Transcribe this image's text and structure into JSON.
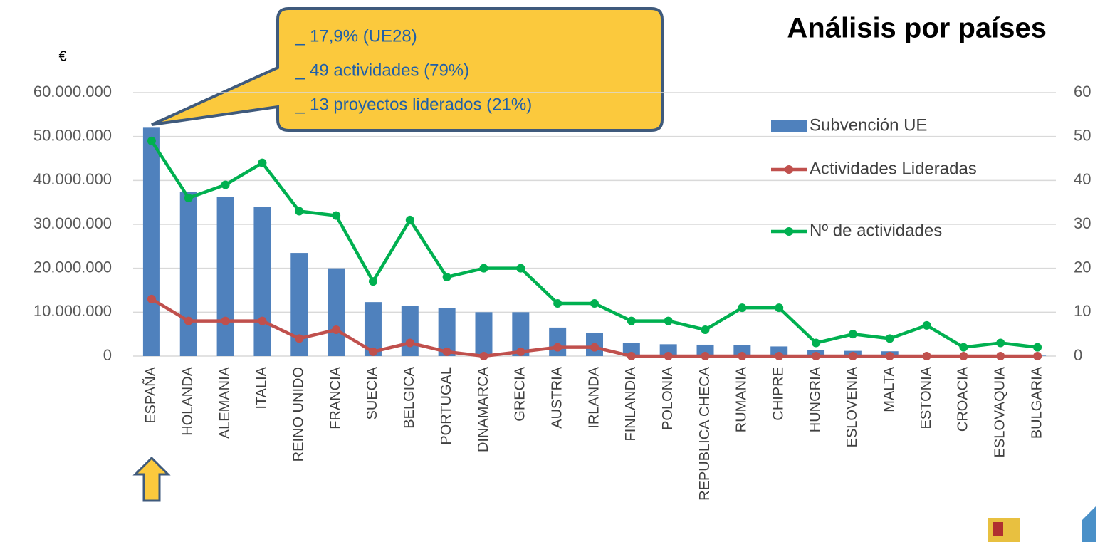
{
  "chart_data": {
    "type": "combo",
    "title": "Análisis por países",
    "y_label": "€",
    "annotations": [
      "_ 17,9% (UE28)",
      "_ 49 actividades (79%)",
      "_ 13 proyectos liderados (21%)"
    ],
    "categories": [
      "ESPAÑA",
      "HOLANDA",
      "ALEMANIA",
      "ITALIA",
      "REINO UNIDO",
      "FRANCIA",
      "SUECIA",
      "BELGICA",
      "PORTUGAL",
      "DINAMARCA",
      "GRECIA",
      "AUSTRIA",
      "IRLANDA",
      "FINLANDIA",
      "POLONIA",
      "REPUBLICA CHECA",
      "RUMANIA",
      "CHIPRE",
      "HUNGRIA",
      "ESLOVENIA",
      "MALTA",
      "ESTONIA",
      "CROACIA",
      "ESLOVAQUIA",
      "BULGARIA"
    ],
    "series": [
      {
        "name": "Subvención UE",
        "type": "bar",
        "color": "#4f81bd",
        "values": [
          52000000,
          37300000,
          36200000,
          34000000,
          23500000,
          20000000,
          12300000,
          11500000,
          11000000,
          10000000,
          10000000,
          6500000,
          5300000,
          3000000,
          2700000,
          2600000,
          2500000,
          2200000,
          1400000,
          1200000,
          1100000,
          300000,
          200000,
          200000,
          100000
        ]
      },
      {
        "name": "Actividades Lideradas",
        "type": "line",
        "axis": "y2",
        "color": "#c0504d",
        "values": [
          13,
          8,
          8,
          8,
          4,
          6,
          1,
          3,
          1,
          0,
          1,
          2,
          2,
          0,
          0,
          0,
          0,
          0,
          0,
          0,
          0,
          0,
          0,
          0,
          0
        ]
      },
      {
        "name": "Nº de actividades",
        "type": "line",
        "axis": "y2",
        "color": "#00b050",
        "values": [
          49,
          36,
          39,
          44,
          33,
          32,
          17,
          31,
          18,
          20,
          20,
          12,
          12,
          8,
          8,
          6,
          11,
          11,
          3,
          5,
          4,
          7,
          2,
          3,
          2
        ]
      }
    ],
    "ylim": [
      0,
      60000000
    ],
    "yticks": [
      0,
      {
        "value": 10000000,
        "label": "10.000.000"
      },
      {
        "value": 20000000,
        "label": "20.000.000"
      },
      {
        "value": 30000000,
        "label": "30.000.000"
      },
      {
        "value": 40000000,
        "label": "40.000.000"
      },
      {
        "value": 50000000,
        "label": "50.000.000"
      },
      {
        "value": 60000000,
        "label": "60.000.000"
      }
    ],
    "y2lim": [
      0,
      60
    ],
    "y2ticks": [
      0,
      10,
      20,
      30,
      40,
      50,
      60
    ],
    "grid": true,
    "legend": "right"
  }
}
